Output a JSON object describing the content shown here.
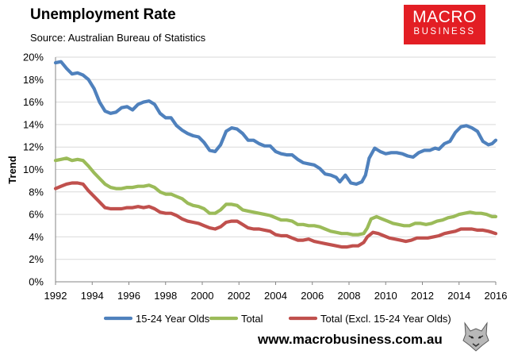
{
  "header": {
    "title": "Unemployment Rate",
    "subtitle": "Source: Australian Bureau of Statistics"
  },
  "logo": {
    "line1": "MACRO",
    "line2": "BUSINESS"
  },
  "footer": {
    "url": "www.macrobusiness.com.au"
  },
  "colors": {
    "youth": "#4f81bd",
    "total": "#9bbb59",
    "excl": "#c0504d",
    "brand": "#e31e24"
  },
  "chart_data": {
    "type": "line",
    "title": "Unemployment Rate",
    "xlabel": "",
    "ylabel": "Trend",
    "xlim": [
      1992,
      2016
    ],
    "ylim": [
      0,
      20
    ],
    "grid": "horizontal",
    "legend": "bottom",
    "x_ticks": [
      "1992",
      "1994",
      "1996",
      "1998",
      "2000",
      "2002",
      "2004",
      "2006",
      "2008",
      "2010",
      "2012",
      "2014",
      "2016"
    ],
    "y_ticks": [
      "0%",
      "2%",
      "4%",
      "6%",
      "8%",
      "10%",
      "12%",
      "14%",
      "16%",
      "18%",
      "20%"
    ],
    "series": [
      {
        "name": "15-24 Year Olds",
        "color": "#4f81bd",
        "points": [
          [
            1992.0,
            19.5
          ],
          [
            1992.3,
            19.6
          ],
          [
            1992.6,
            19.0
          ],
          [
            1992.9,
            18.5
          ],
          [
            1993.2,
            18.6
          ],
          [
            1993.5,
            18.4
          ],
          [
            1993.8,
            18.0
          ],
          [
            1994.1,
            17.2
          ],
          [
            1994.4,
            16.0
          ],
          [
            1994.7,
            15.2
          ],
          [
            1995.0,
            15.0
          ],
          [
            1995.3,
            15.1
          ],
          [
            1995.6,
            15.5
          ],
          [
            1995.9,
            15.6
          ],
          [
            1996.2,
            15.3
          ],
          [
            1996.5,
            15.8
          ],
          [
            1996.8,
            16.0
          ],
          [
            1997.1,
            16.1
          ],
          [
            1997.4,
            15.8
          ],
          [
            1997.7,
            15.0
          ],
          [
            1998.0,
            14.6
          ],
          [
            1998.3,
            14.6
          ],
          [
            1998.6,
            13.9
          ],
          [
            1998.9,
            13.5
          ],
          [
            1999.2,
            13.2
          ],
          [
            1999.5,
            13.0
          ],
          [
            1999.8,
            12.9
          ],
          [
            2000.1,
            12.4
          ],
          [
            2000.4,
            11.7
          ],
          [
            2000.7,
            11.6
          ],
          [
            2001.0,
            12.2
          ],
          [
            2001.3,
            13.4
          ],
          [
            2001.6,
            13.7
          ],
          [
            2001.9,
            13.6
          ],
          [
            2002.2,
            13.2
          ],
          [
            2002.5,
            12.6
          ],
          [
            2002.8,
            12.6
          ],
          [
            2003.1,
            12.3
          ],
          [
            2003.4,
            12.1
          ],
          [
            2003.7,
            12.1
          ],
          [
            2004.0,
            11.6
          ],
          [
            2004.3,
            11.4
          ],
          [
            2004.6,
            11.3
          ],
          [
            2004.9,
            11.3
          ],
          [
            2005.2,
            10.9
          ],
          [
            2005.5,
            10.6
          ],
          [
            2005.8,
            10.5
          ],
          [
            2006.1,
            10.4
          ],
          [
            2006.4,
            10.1
          ],
          [
            2006.7,
            9.6
          ],
          [
            2007.0,
            9.5
          ],
          [
            2007.3,
            9.3
          ],
          [
            2007.5,
            8.9
          ],
          [
            2007.8,
            9.5
          ],
          [
            2008.1,
            8.8
          ],
          [
            2008.4,
            8.7
          ],
          [
            2008.7,
            8.9
          ],
          [
            2008.9,
            9.5
          ],
          [
            2009.1,
            11.0
          ],
          [
            2009.4,
            11.9
          ],
          [
            2009.7,
            11.6
          ],
          [
            2010.0,
            11.4
          ],
          [
            2010.3,
            11.5
          ],
          [
            2010.6,
            11.5
          ],
          [
            2010.9,
            11.4
          ],
          [
            2011.2,
            11.2
          ],
          [
            2011.5,
            11.1
          ],
          [
            2011.8,
            11.5
          ],
          [
            2012.1,
            11.7
          ],
          [
            2012.4,
            11.7
          ],
          [
            2012.7,
            11.9
          ],
          [
            2012.9,
            11.8
          ],
          [
            2013.2,
            12.3
          ],
          [
            2013.5,
            12.5
          ],
          [
            2013.8,
            13.3
          ],
          [
            2014.1,
            13.8
          ],
          [
            2014.4,
            13.9
          ],
          [
            2014.7,
            13.7
          ],
          [
            2015.0,
            13.4
          ],
          [
            2015.3,
            12.5
          ],
          [
            2015.6,
            12.2
          ],
          [
            2015.8,
            12.3
          ],
          [
            2016.0,
            12.6
          ]
        ]
      },
      {
        "name": "Total",
        "color": "#9bbb59",
        "points": [
          [
            1992.0,
            10.8
          ],
          [
            1992.3,
            10.9
          ],
          [
            1992.6,
            11.0
          ],
          [
            1992.9,
            10.8
          ],
          [
            1993.2,
            10.9
          ],
          [
            1993.5,
            10.8
          ],
          [
            1993.8,
            10.3
          ],
          [
            1994.1,
            9.7
          ],
          [
            1994.4,
            9.2
          ],
          [
            1994.7,
            8.7
          ],
          [
            1995.0,
            8.4
          ],
          [
            1995.3,
            8.3
          ],
          [
            1995.6,
            8.3
          ],
          [
            1995.9,
            8.4
          ],
          [
            1996.2,
            8.4
          ],
          [
            1996.5,
            8.5
          ],
          [
            1996.8,
            8.5
          ],
          [
            1997.1,
            8.6
          ],
          [
            1997.4,
            8.4
          ],
          [
            1997.7,
            8.0
          ],
          [
            1998.0,
            7.8
          ],
          [
            1998.3,
            7.8
          ],
          [
            1998.6,
            7.6
          ],
          [
            1998.9,
            7.4
          ],
          [
            1999.2,
            7.0
          ],
          [
            1999.5,
            6.8
          ],
          [
            1999.8,
            6.7
          ],
          [
            2000.1,
            6.5
          ],
          [
            2000.4,
            6.1
          ],
          [
            2000.7,
            6.1
          ],
          [
            2001.0,
            6.4
          ],
          [
            2001.3,
            6.9
          ],
          [
            2001.6,
            6.9
          ],
          [
            2001.9,
            6.8
          ],
          [
            2002.2,
            6.4
          ],
          [
            2002.5,
            6.3
          ],
          [
            2002.8,
            6.2
          ],
          [
            2003.1,
            6.1
          ],
          [
            2003.4,
            6.0
          ],
          [
            2003.7,
            5.9
          ],
          [
            2004.0,
            5.7
          ],
          [
            2004.3,
            5.5
          ],
          [
            2004.6,
            5.5
          ],
          [
            2004.9,
            5.4
          ],
          [
            2005.2,
            5.1
          ],
          [
            2005.5,
            5.1
          ],
          [
            2005.8,
            5.0
          ],
          [
            2006.1,
            5.0
          ],
          [
            2006.4,
            4.9
          ],
          [
            2006.7,
            4.7
          ],
          [
            2007.0,
            4.5
          ],
          [
            2007.3,
            4.4
          ],
          [
            2007.6,
            4.3
          ],
          [
            2007.9,
            4.3
          ],
          [
            2008.2,
            4.2
          ],
          [
            2008.5,
            4.2
          ],
          [
            2008.8,
            4.3
          ],
          [
            2009.0,
            4.8
          ],
          [
            2009.2,
            5.6
          ],
          [
            2009.5,
            5.8
          ],
          [
            2009.8,
            5.6
          ],
          [
            2010.1,
            5.4
          ],
          [
            2010.4,
            5.2
          ],
          [
            2010.7,
            5.1
          ],
          [
            2011.0,
            5.0
          ],
          [
            2011.3,
            5.0
          ],
          [
            2011.6,
            5.2
          ],
          [
            2011.9,
            5.2
          ],
          [
            2012.2,
            5.1
          ],
          [
            2012.5,
            5.2
          ],
          [
            2012.8,
            5.4
          ],
          [
            2013.1,
            5.5
          ],
          [
            2013.4,
            5.7
          ],
          [
            2013.7,
            5.8
          ],
          [
            2014.0,
            6.0
          ],
          [
            2014.3,
            6.1
          ],
          [
            2014.6,
            6.2
          ],
          [
            2014.9,
            6.1
          ],
          [
            2015.2,
            6.1
          ],
          [
            2015.5,
            6.0
          ],
          [
            2015.8,
            5.8
          ],
          [
            2016.0,
            5.8
          ]
        ]
      },
      {
        "name": "Total (Excl. 15-24 Year Olds)",
        "color": "#c0504d",
        "points": [
          [
            1992.0,
            8.3
          ],
          [
            1992.3,
            8.5
          ],
          [
            1992.6,
            8.7
          ],
          [
            1992.9,
            8.8
          ],
          [
            1993.2,
            8.8
          ],
          [
            1993.5,
            8.7
          ],
          [
            1993.8,
            8.1
          ],
          [
            1994.1,
            7.6
          ],
          [
            1994.4,
            7.1
          ],
          [
            1994.7,
            6.6
          ],
          [
            1995.0,
            6.5
          ],
          [
            1995.3,
            6.5
          ],
          [
            1995.6,
            6.5
          ],
          [
            1995.9,
            6.6
          ],
          [
            1996.2,
            6.6
          ],
          [
            1996.5,
            6.7
          ],
          [
            1996.8,
            6.6
          ],
          [
            1997.1,
            6.7
          ],
          [
            1997.4,
            6.5
          ],
          [
            1997.7,
            6.2
          ],
          [
            1998.0,
            6.1
          ],
          [
            1998.3,
            6.1
          ],
          [
            1998.6,
            5.9
          ],
          [
            1998.9,
            5.6
          ],
          [
            1999.2,
            5.4
          ],
          [
            1999.5,
            5.3
          ],
          [
            1999.8,
            5.2
          ],
          [
            2000.1,
            5.0
          ],
          [
            2000.4,
            4.8
          ],
          [
            2000.7,
            4.7
          ],
          [
            2001.0,
            4.9
          ],
          [
            2001.3,
            5.3
          ],
          [
            2001.6,
            5.4
          ],
          [
            2001.9,
            5.4
          ],
          [
            2002.2,
            5.1
          ],
          [
            2002.5,
            4.8
          ],
          [
            2002.8,
            4.7
          ],
          [
            2003.1,
            4.7
          ],
          [
            2003.4,
            4.6
          ],
          [
            2003.7,
            4.5
          ],
          [
            2004.0,
            4.2
          ],
          [
            2004.3,
            4.1
          ],
          [
            2004.6,
            4.1
          ],
          [
            2004.9,
            3.9
          ],
          [
            2005.2,
            3.7
          ],
          [
            2005.5,
            3.7
          ],
          [
            2005.8,
            3.8
          ],
          [
            2006.1,
            3.6
          ],
          [
            2006.4,
            3.5
          ],
          [
            2006.7,
            3.4
          ],
          [
            2007.0,
            3.3
          ],
          [
            2007.3,
            3.2
          ],
          [
            2007.6,
            3.1
          ],
          [
            2007.9,
            3.1
          ],
          [
            2008.2,
            3.2
          ],
          [
            2008.5,
            3.2
          ],
          [
            2008.8,
            3.5
          ],
          [
            2009.0,
            4.0
          ],
          [
            2009.3,
            4.4
          ],
          [
            2009.6,
            4.3
          ],
          [
            2009.9,
            4.1
          ],
          [
            2010.2,
            3.9
          ],
          [
            2010.5,
            3.8
          ],
          [
            2010.8,
            3.7
          ],
          [
            2011.1,
            3.6
          ],
          [
            2011.4,
            3.7
          ],
          [
            2011.7,
            3.9
          ],
          [
            2012.0,
            3.9
          ],
          [
            2012.3,
            3.9
          ],
          [
            2012.6,
            4.0
          ],
          [
            2012.9,
            4.1
          ],
          [
            2013.2,
            4.3
          ],
          [
            2013.5,
            4.4
          ],
          [
            2013.8,
            4.5
          ],
          [
            2014.1,
            4.7
          ],
          [
            2014.4,
            4.7
          ],
          [
            2014.7,
            4.7
          ],
          [
            2015.0,
            4.6
          ],
          [
            2015.3,
            4.6
          ],
          [
            2015.6,
            4.5
          ],
          [
            2015.8,
            4.4
          ],
          [
            2016.0,
            4.3
          ]
        ]
      }
    ]
  }
}
